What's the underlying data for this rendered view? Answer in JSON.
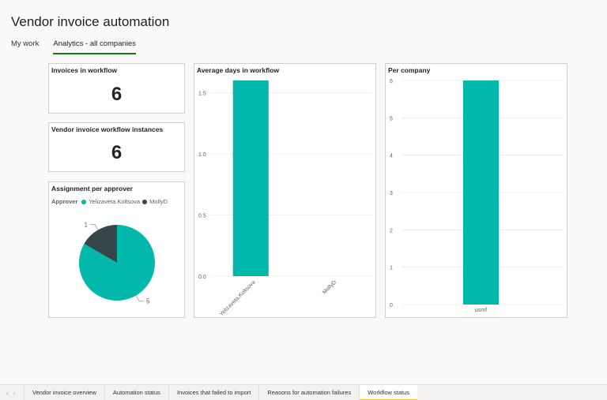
{
  "header": {
    "title": "Vendor invoice automation",
    "tabs": [
      {
        "label": "My work"
      },
      {
        "label": "Analytics - all companies"
      }
    ]
  },
  "kpi_invoices": {
    "title": "Invoices in workflow",
    "value": "6"
  },
  "kpi_instances": {
    "title": "Vendor invoice workflow instances",
    "value": "6"
  },
  "pie": {
    "title": "Assignment per approver",
    "legend_title": "Approver",
    "colors": {
      "Yelizaveta.Koltsova": "#01b8aa",
      "MollyD": "#374649"
    }
  },
  "avg_days": {
    "title": "Average days in workflow",
    "bar_color": "#01b8aa"
  },
  "per_company": {
    "title": "Per company",
    "bar_color": "#01b8aa"
  },
  "chart_data": [
    {
      "type": "pie",
      "title": "Assignment per approver",
      "legend": "Approver",
      "labels": [
        "Yelizaveta.Koltsova",
        "MollyD"
      ],
      "values": [
        5,
        1
      ]
    },
    {
      "type": "bar",
      "title": "Average days in workflow",
      "categories": [
        "Yelizaveta.Koltsova",
        "MollyD"
      ],
      "values": [
        1.6,
        0
      ],
      "ylim": [
        0,
        1.6
      ],
      "yticks": [
        "0.0",
        "0.5",
        "1.0",
        "1.5"
      ]
    },
    {
      "type": "bar",
      "title": "Per company",
      "categories": [
        "usmf"
      ],
      "values": [
        6
      ],
      "ylim": [
        0,
        6
      ],
      "yticks": [
        "0",
        "1",
        "2",
        "3",
        "4",
        "5",
        "6"
      ]
    }
  ],
  "bottom_tabs": [
    {
      "label": "Vendor invoice overview"
    },
    {
      "label": "Automation status"
    },
    {
      "label": "Invoices that failed to import"
    },
    {
      "label": "Reasons for automation failures"
    },
    {
      "label": "Workflow status"
    }
  ]
}
